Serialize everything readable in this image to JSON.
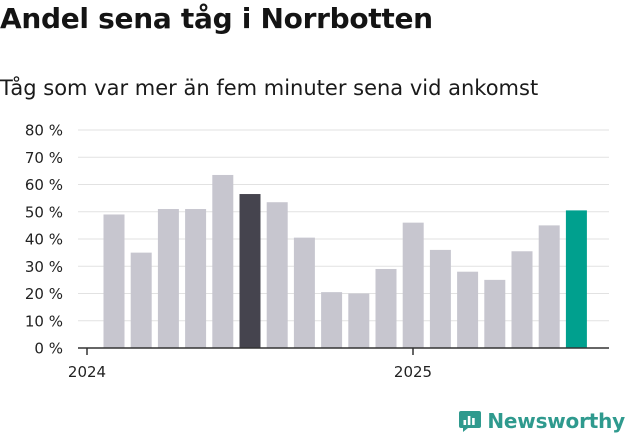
{
  "chart_data": {
    "type": "bar",
    "title": "Andel sena tåg i Norrbotten",
    "subtitle": "Tåg som var mer än fem minuter sena vid ankomst",
    "xlabel": "",
    "ylabel": "",
    "ylim": [
      0,
      80
    ],
    "y_ticks": [
      "0 %",
      "10 %",
      "20 %",
      "30 %",
      "40 %",
      "50 %",
      "60 %",
      "70 %",
      "80 %"
    ],
    "x_tick_labels": [
      {
        "label": "2024",
        "index": 0
      },
      {
        "label": "2025",
        "index": 12
      }
    ],
    "values": [
      49,
      35,
      51,
      51,
      63.5,
      56.5,
      53.5,
      40.5,
      20.5,
      20,
      29,
      46,
      36,
      28,
      25,
      35.5,
      45,
      50.5
    ],
    "highlight": {
      "5": "#45444e",
      "17": "#00a08e"
    },
    "grid": true,
    "legend": "none",
    "colors": {
      "bar": "#c7c6cf",
      "gridline": "#e2e2e2",
      "axis": "#333333"
    }
  },
  "brand": {
    "name": "Newsworthy",
    "icon": "newsworthy-chart-icon",
    "color": "#2f9a8e"
  }
}
